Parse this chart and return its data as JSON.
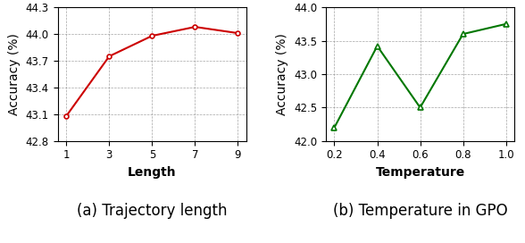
{
  "left": {
    "x": [
      1,
      3,
      5,
      7,
      9
    ],
    "y": [
      43.08,
      43.75,
      43.98,
      44.08,
      44.01
    ],
    "color": "#cc0000",
    "xlabel": "Length",
    "ylabel": "Accuracy (%)",
    "ylim": [
      42.8,
      44.3
    ],
    "yticks": [
      42.8,
      43.1,
      43.4,
      43.7,
      44.0,
      44.3
    ],
    "xticks": [
      1,
      3,
      5,
      7,
      9
    ],
    "caption": "(a) Trajectory length"
  },
  "right": {
    "x": [
      0.2,
      0.4,
      0.6,
      0.8,
      1.0
    ],
    "y": [
      42.2,
      43.42,
      42.5,
      43.6,
      43.75
    ],
    "color": "#007700",
    "xlabel": "Temperature",
    "ylabel": "Accuracy (%)",
    "ylim": [
      42.0,
      44.0
    ],
    "yticks": [
      42.0,
      42.5,
      43.0,
      43.5,
      44.0
    ],
    "xticks": [
      0.2,
      0.4,
      0.6,
      0.8,
      1.0
    ],
    "caption": "(b) Temperature in GPO"
  },
  "caption_fontsize": 12,
  "axis_label_fontsize": 10,
  "tick_fontsize": 8.5
}
